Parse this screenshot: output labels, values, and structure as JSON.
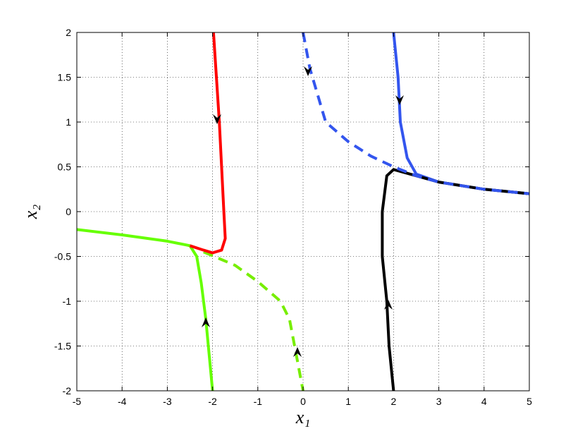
{
  "chart_data": {
    "type": "line",
    "xlabel": "x₁",
    "ylabel": "x₂",
    "xlim": [
      -5,
      5
    ],
    "ylim": [
      -2,
      2
    ],
    "xticks": [
      -5,
      -4,
      -3,
      -2,
      -1,
      0,
      1,
      2,
      3,
      4,
      5
    ],
    "yticks": [
      -2,
      -1.5,
      -1,
      -0.5,
      0,
      0.5,
      1,
      1.5,
      2
    ],
    "grid": true,
    "series": [
      {
        "color": "#77ee00",
        "dashed": true,
        "x": [
          -2.2,
          -1.5,
          -1,
          -0.5,
          -0.3,
          -0.15,
          0
        ],
        "y": [
          -0.45,
          -0.6,
          -0.78,
          -1.0,
          -1.2,
          -1.6,
          -2
        ]
      },
      {
        "color": "#66ff00",
        "dashed": false,
        "x": [
          -5,
          -4,
          -3,
          -2.5,
          -2.35,
          -2.25,
          -2.15,
          -2
        ],
        "y": [
          -0.2,
          -0.26,
          -0.33,
          -0.38,
          -0.5,
          -0.8,
          -1.2,
          -2
        ]
      },
      {
        "color": "#ff0000",
        "dashed": false,
        "x": [
          -1.98,
          -1.85,
          -1.75,
          -1.72,
          -1.8,
          -2.0,
          -2.2,
          -2.5
        ],
        "y": [
          2,
          1,
          0,
          -0.3,
          -0.43,
          -0.46,
          -0.43,
          -0.38
        ]
      },
      {
        "color": "#3355ee",
        "dashed": false,
        "x": [
          2,
          2.1,
          2.15,
          2.3,
          2.5,
          3,
          4,
          5
        ],
        "y": [
          2,
          1.5,
          1.0,
          0.6,
          0.42,
          0.33,
          0.25,
          0.2
        ]
      },
      {
        "color": "#000000",
        "dashed": false,
        "x": [
          2,
          1.9,
          1.85,
          1.75,
          1.75,
          1.85,
          2,
          2.5,
          3,
          4,
          5
        ],
        "y": [
          -2,
          -1.5,
          -1,
          -0.5,
          0,
          0.4,
          0.47,
          0.4,
          0.33,
          0.25,
          0.2
        ]
      },
      {
        "color": "#3355ee",
        "dashed": true,
        "x": [
          0,
          0.15,
          0.5,
          1.0,
          1.5,
          2,
          2.5,
          3,
          4,
          5
        ],
        "y": [
          2,
          1.6,
          1.0,
          0.78,
          0.62,
          0.5,
          0.4,
          0.33,
          0.25,
          0.2
        ]
      }
    ]
  }
}
